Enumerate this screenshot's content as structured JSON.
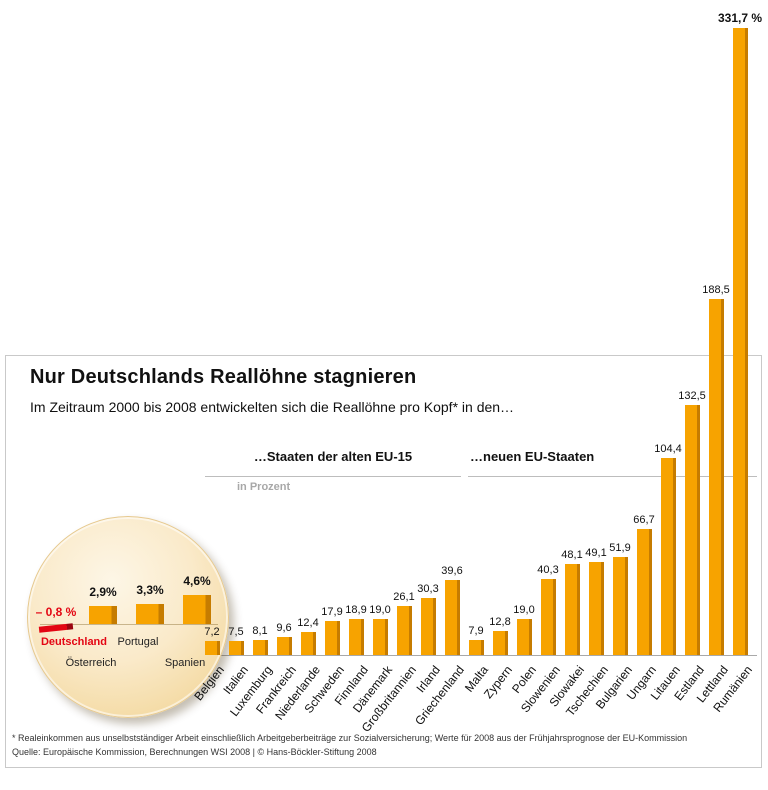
{
  "header": {
    "title": "Nur Deutschlands Reallöhne stagnieren",
    "subtitle": "Im Zeitraum 2000 bis 2008 entwickelten sich die Reallöhne pro Kopf* in den…"
  },
  "sections": {
    "old_eu_label": "…Staaten der alten EU-15",
    "new_eu_label": "…neuen EU-Staaten",
    "unit_label": "in Prozent"
  },
  "chart_data": {
    "type": "bar",
    "title": "Nur Deutschlands Reallöhne stagnieren",
    "subtitle": "Im Zeitraum 2000 bis 2008 entwickelten sich die Reallöhne pro Kopf* in den…",
    "unit": "Prozent",
    "grid": false,
    "groups": [
      {
        "label": "…Staaten der alten EU-15",
        "entries": [
          {
            "country": "Deutschland",
            "value": -0.8,
            "value_label": "– 0,8 %",
            "inset": true,
            "highlight": true
          },
          {
            "country": "Österreich",
            "value": 2.9,
            "value_label": "2,9%",
            "inset": true
          },
          {
            "country": "Portugal",
            "value": 3.3,
            "value_label": "3,3%",
            "inset": true
          },
          {
            "country": "Spanien",
            "value": 4.6,
            "value_label": "4,6%",
            "inset": true
          },
          {
            "country": "Belgien",
            "value": 7.2,
            "value_label": "7,2"
          },
          {
            "country": "Italien",
            "value": 7.5,
            "value_label": "7,5"
          },
          {
            "country": "Luxemburg",
            "value": 8.1,
            "value_label": "8,1"
          },
          {
            "country": "Frankreich",
            "value": 9.6,
            "value_label": "9,6"
          },
          {
            "country": "Niederlande",
            "value": 12.4,
            "value_label": "12,4"
          },
          {
            "country": "Schweden",
            "value": 17.9,
            "value_label": "17,9"
          },
          {
            "country": "Finnland",
            "value": 18.9,
            "value_label": "18,9"
          },
          {
            "country": "Dänemark",
            "value": 19.0,
            "value_label": "19,0"
          },
          {
            "country": "Großbritannien",
            "value": 26.1,
            "value_label": "26,1"
          },
          {
            "country": "Irland",
            "value": 30.3,
            "value_label": "30,3"
          },
          {
            "country": "Griechenland",
            "value": 39.6,
            "value_label": "39,6"
          }
        ]
      },
      {
        "label": "…neuen EU-Staaten",
        "entries": [
          {
            "country": "Malta",
            "value": 7.9,
            "value_label": "7,9"
          },
          {
            "country": "Zypern",
            "value": 12.8,
            "value_label": "12,8"
          },
          {
            "country": "Polen",
            "value": 19.0,
            "value_label": "19,0"
          },
          {
            "country": "Slowenien",
            "value": 40.3,
            "value_label": "40,3"
          },
          {
            "country": "Slowakei",
            "value": 48.1,
            "value_label": "48,1"
          },
          {
            "country": "Tschechien",
            "value": 49.1,
            "value_label": "49,1"
          },
          {
            "country": "Bulgarien",
            "value": 51.9,
            "value_label": "51,9"
          },
          {
            "country": "Ungarn",
            "value": 66.7,
            "value_label": "66,7"
          },
          {
            "country": "Litauen",
            "value": 104.4,
            "value_label": "104,4"
          },
          {
            "country": "Estland",
            "value": 132.5,
            "value_label": "132,5"
          },
          {
            "country": "Lettland",
            "value": 188.5,
            "value_label": "188,5"
          },
          {
            "country": "Rumänien",
            "value": 331.7,
            "value_label": "331,7 %",
            "emphasis": true
          }
        ]
      }
    ]
  },
  "footer": {
    "footnote": "* Realeinkommen aus unselbstständiger Arbeit einschließlich Arbeitgeberbeiträge zur Sozialversicherung;  Werte für 2008 aus der Frühjahrsprognose der EU-Kommission",
    "source": "Quelle: Europäische Kommission, Berechnungen WSI 2008 | © Hans-Böckler-Stiftung 2008"
  },
  "colors": {
    "bar": "#F7A300",
    "bar_shade": "#C67C00",
    "highlight": "#E30613",
    "highlight_shade": "#9B0410"
  }
}
